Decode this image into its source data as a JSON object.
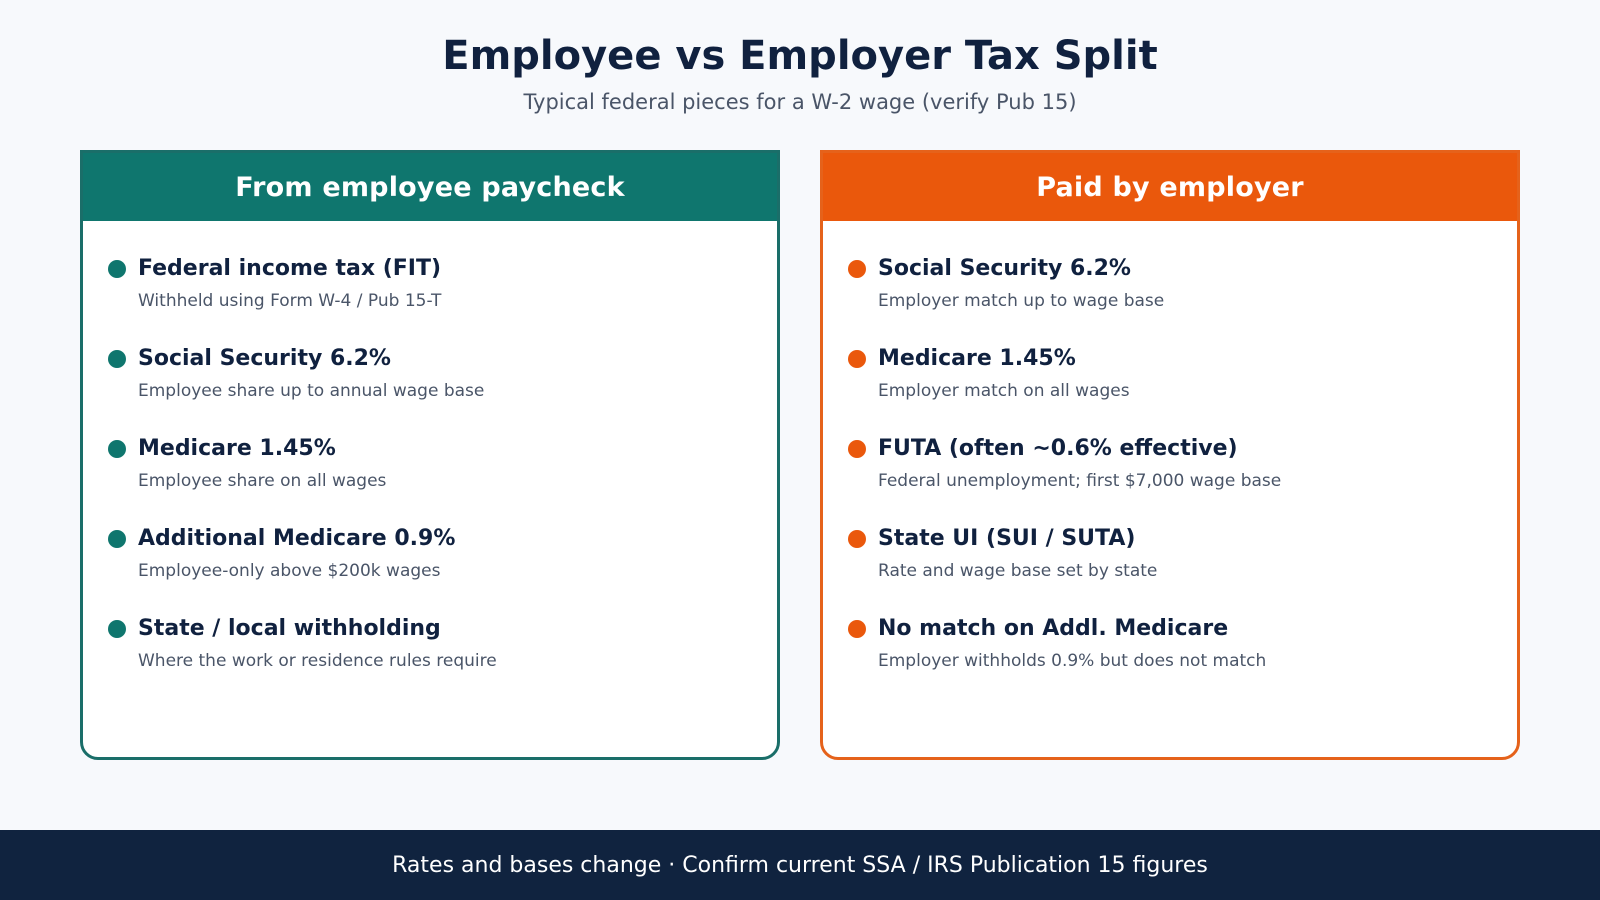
{
  "title": "Employee vs Employer Tax Split",
  "subtitle": "Typical federal pieces for a W-2 wage (verify Pub 15)",
  "colors": {
    "employee_accent": "#0f766e",
    "employer_accent": "#ea580c",
    "footer_background": "#10233f"
  },
  "panels": {
    "employee": {
      "header": "From employee paycheck",
      "items": [
        {
          "title": "Federal income tax (FIT)",
          "description": "Withheld using Form W-4 / Pub 15-T"
        },
        {
          "title": "Social Security 6.2%",
          "description": "Employee share up to annual wage base"
        },
        {
          "title": "Medicare 1.45%",
          "description": "Employee share on all wages"
        },
        {
          "title": "Additional Medicare 0.9%",
          "description": "Employee-only above $200k wages"
        },
        {
          "title": "State / local withholding",
          "description": "Where the work or residence rules require"
        }
      ]
    },
    "employer": {
      "header": "Paid by employer",
      "items": [
        {
          "title": "Social Security 6.2%",
          "description": "Employer match up to wage base"
        },
        {
          "title": "Medicare 1.45%",
          "description": "Employer match on all wages"
        },
        {
          "title": "FUTA (often ~0.6% effective)",
          "description": "Federal unemployment; first $7,000 wage base"
        },
        {
          "title": "State UI (SUI / SUTA)",
          "description": "Rate and wage base set by state"
        },
        {
          "title": "No match on Addl. Medicare",
          "description": "Employer withholds 0.9% but does not match"
        }
      ]
    }
  },
  "footer": "Rates and bases change · Confirm current SSA / IRS Publication 15 figures"
}
